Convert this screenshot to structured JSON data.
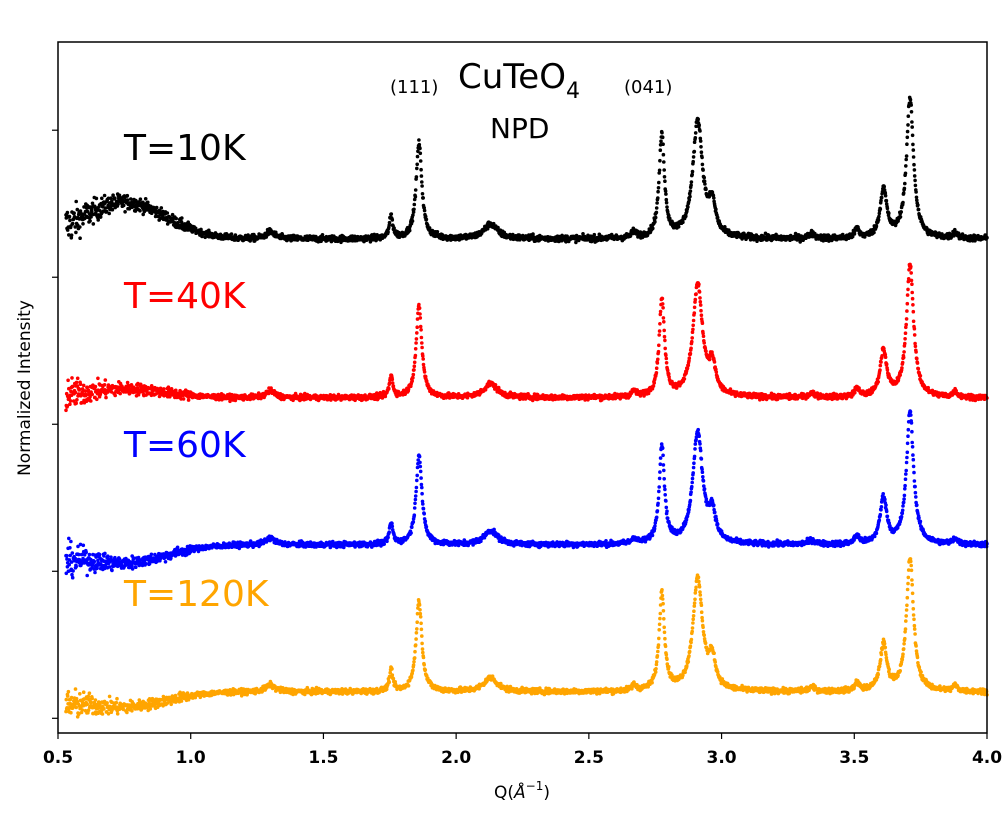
{
  "chart_data": {
    "type": "scatter",
    "title": "CuTeO",
    "title_subscript": "4",
    "subtitle": "NPD",
    "xlabel_main": "Q(",
    "xlabel_unit": "Å",
    "xlabel_exp": "−1",
    "xlabel_close": ")",
    "ylabel": "Normalized Intensity",
    "xlim": [
      0.5,
      4.0
    ],
    "ylim": [
      -0.1,
      4.6
    ],
    "xticks": [
      {
        "value": 0.5,
        "label": "0.5"
      },
      {
        "value": 1.0,
        "label": "1.0"
      },
      {
        "value": 1.5,
        "label": "1.5"
      },
      {
        "value": 2.0,
        "label": "2.0"
      },
      {
        "value": 2.5,
        "label": "2.5"
      },
      {
        "value": 3.0,
        "label": "3.0"
      },
      {
        "value": 3.5,
        "label": "3.5"
      },
      {
        "value": 4.0,
        "label": "4.0"
      }
    ],
    "yticks": [
      0,
      1,
      2,
      3,
      4
    ],
    "peak_annotations": [
      {
        "label": "(111)",
        "q": 1.86
      },
      {
        "label": "(041)",
        "q": 2.78
      }
    ],
    "series": [
      {
        "name": "T=10K",
        "color": "#000000",
        "offset": 3.0,
        "baseline": 0.08,
        "noise": 0.035,
        "scale": 1.0,
        "lowq_bump": 0.25
      },
      {
        "name": "T=40K",
        "color": "#ff0000",
        "offset": 2.0,
        "baseline": 0.0,
        "noise": 0.03,
        "scale": 0.95,
        "lowq_bump": 0.06
      },
      {
        "name": "T=60K",
        "color": "#0000ff",
        "offset": 1.0,
        "baseline": 0.0,
        "noise": 0.03,
        "scale": 0.95,
        "lowq_bump": -0.12
      },
      {
        "name": "T=120K",
        "color": "#ffa500",
        "offset": 0.0,
        "baseline": 0.0,
        "noise": 0.03,
        "scale": 0.95,
        "lowq_bump": -0.1
      }
    ],
    "peaks": [
      {
        "q": 1.3,
        "h": 0.05,
        "w": 0.02
      },
      {
        "q": 1.755,
        "h": 0.15,
        "w": 0.008
      },
      {
        "q": 1.86,
        "h": 0.65,
        "w": 0.013
      },
      {
        "q": 2.13,
        "h": 0.1,
        "w": 0.03
      },
      {
        "q": 2.67,
        "h": 0.04,
        "w": 0.01
      },
      {
        "q": 2.775,
        "h": 0.7,
        "w": 0.012
      },
      {
        "q": 2.91,
        "h": 0.8,
        "w": 0.022
      },
      {
        "q": 2.965,
        "h": 0.2,
        "w": 0.015
      },
      {
        "q": 3.34,
        "h": 0.03,
        "w": 0.015
      },
      {
        "q": 3.51,
        "h": 0.06,
        "w": 0.01
      },
      {
        "q": 3.61,
        "h": 0.33,
        "w": 0.015
      },
      {
        "q": 3.71,
        "h": 0.95,
        "w": 0.016
      },
      {
        "q": 3.88,
        "h": 0.04,
        "w": 0.01
      }
    ]
  }
}
